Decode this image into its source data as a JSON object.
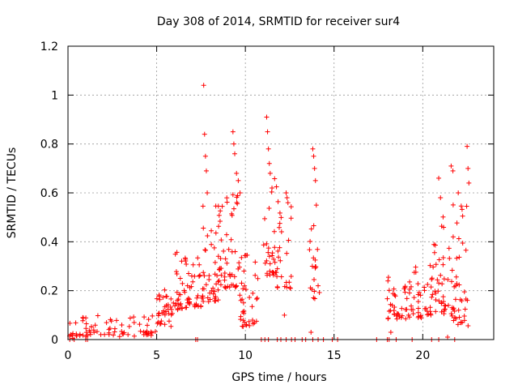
{
  "chart_data": {
    "type": "scatter",
    "title": "Day 308 of 2014, SRMTID for receiver sur4",
    "xlabel": "GPS time / hours",
    "ylabel": "SRMTID / TECUs",
    "xlim": [
      0,
      24
    ],
    "ylim": [
      0,
      1.2
    ],
    "x_ticks": [
      0,
      5,
      10,
      15,
      20
    ],
    "y_ticks": [
      0,
      0.2,
      0.4,
      0.6,
      0.8,
      1,
      1.2
    ],
    "grid": true,
    "marker": "+",
    "color": "#ff0000",
    "series": [
      {
        "name": "SRMTID",
        "segments": [
          {
            "x0": 0.0,
            "x1": 0.4,
            "y_low": 0.0,
            "y_high": 0.06,
            "density": 6
          },
          {
            "x0": 0.4,
            "x1": 5.0,
            "y_low": 0.01,
            "y_high": 0.09,
            "density": 70
          },
          {
            "x0": 5.0,
            "x1": 6.0,
            "y_low": 0.05,
            "y_high": 0.25,
            "density": 35
          },
          {
            "x0": 6.0,
            "x1": 7.5,
            "y_low": 0.12,
            "y_high": 0.36,
            "density": 60
          },
          {
            "x0": 7.5,
            "x1": 8.5,
            "y_low": 0.15,
            "y_high": 0.55,
            "density": 45
          },
          {
            "x0": 8.5,
            "x1": 9.6,
            "y_low": 0.2,
            "y_high": 0.6,
            "density": 50
          },
          {
            "x0": 9.6,
            "x1": 10.8,
            "y_low": 0.05,
            "y_high": 0.35,
            "density": 40
          },
          {
            "x0": 11.0,
            "x1": 11.8,
            "y_low": 0.25,
            "y_high": 0.65,
            "density": 30
          },
          {
            "x0": 11.8,
            "x1": 12.6,
            "y_low": 0.2,
            "y_high": 0.55,
            "density": 25
          },
          {
            "x0": 13.6,
            "x1": 14.2,
            "y_low": 0.15,
            "y_high": 0.5,
            "density": 18
          },
          {
            "x0": 18.0,
            "x1": 19.5,
            "y_low": 0.08,
            "y_high": 0.25,
            "density": 45
          },
          {
            "x0": 19.5,
            "x1": 20.6,
            "y_low": 0.08,
            "y_high": 0.3,
            "density": 35
          },
          {
            "x0": 20.6,
            "x1": 21.5,
            "y_low": 0.1,
            "y_high": 0.5,
            "density": 35
          },
          {
            "x0": 21.5,
            "x1": 22.6,
            "y_low": 0.05,
            "y_high": 0.55,
            "density": 45
          }
        ],
        "spikes": [
          [
            7.65,
            1.04
          ],
          [
            7.7,
            0.84
          ],
          [
            7.8,
            0.69
          ],
          [
            7.85,
            0.6
          ],
          [
            7.75,
            0.75
          ],
          [
            9.3,
            0.85
          ],
          [
            9.35,
            0.8
          ],
          [
            9.4,
            0.76
          ],
          [
            9.5,
            0.68
          ],
          [
            9.6,
            0.65
          ],
          [
            9.7,
            0.6
          ],
          [
            11.2,
            0.91
          ],
          [
            11.25,
            0.85
          ],
          [
            11.3,
            0.78
          ],
          [
            11.35,
            0.72
          ],
          [
            11.4,
            0.68
          ],
          [
            11.5,
            0.62
          ],
          [
            12.3,
            0.6
          ],
          [
            12.4,
            0.56
          ],
          [
            12.35,
            0.58
          ],
          [
            13.8,
            0.78
          ],
          [
            13.85,
            0.75
          ],
          [
            13.9,
            0.7
          ],
          [
            13.95,
            0.65
          ],
          [
            14.0,
            0.55
          ],
          [
            20.9,
            0.66
          ],
          [
            21.0,
            0.58
          ],
          [
            21.6,
            0.71
          ],
          [
            21.7,
            0.69
          ],
          [
            22.0,
            0.6
          ],
          [
            22.5,
            0.79
          ],
          [
            22.55,
            0.7
          ],
          [
            22.6,
            0.64
          ],
          [
            13.7,
            0.03
          ],
          [
            12.2,
            0.1
          ],
          [
            14.1,
            0.22
          ],
          [
            18.2,
            0.03
          ],
          [
            21.4,
            0.01
          ]
        ],
        "zeros": [
          0.1,
          0.35,
          1.0,
          1.1,
          7.2,
          7.3,
          10.9,
          11.1,
          11.3,
          11.8,
          12.0,
          12.3,
          12.6,
          12.8,
          13.2,
          13.4,
          13.8,
          14.1,
          14.4,
          14.9,
          15.2,
          17.4,
          18.0,
          18.1,
          18.5,
          19.4,
          20.5,
          20.9,
          21.8
        ]
      }
    ]
  }
}
